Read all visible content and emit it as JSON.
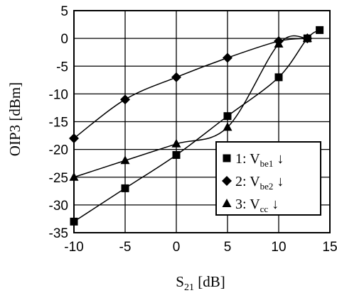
{
  "chart_data": {
    "type": "line",
    "title": "",
    "xlabel": {
      "main": "S",
      "sub": "21",
      "unit": " [dB]"
    },
    "ylabel": "OIP3 [dBm]",
    "xlim": [
      -10,
      15
    ],
    "ylim": [
      -35,
      5
    ],
    "xticks": [
      -10,
      -5,
      0,
      5,
      10,
      15
    ],
    "yticks": [
      -35,
      -30,
      -25,
      -20,
      -15,
      -10,
      -5,
      0,
      5
    ],
    "grid": true,
    "legend_position": "bottom-right",
    "series": [
      {
        "name": "1: V_be1 ↓",
        "label": {
          "prefix": "1: V",
          "sub": "be1",
          "suffix": " ↓"
        },
        "marker": "square",
        "color": "#000000",
        "x": [
          -10,
          -5,
          0,
          5,
          10,
          12.8,
          14
        ],
        "y": [
          -33,
          -27,
          -21,
          -14,
          -7,
          0,
          1.5
        ]
      },
      {
        "name": "2: V_be2 ↓",
        "label": {
          "prefix": "2: V",
          "sub": "be2",
          "suffix": " ↓"
        },
        "marker": "diamond",
        "color": "#000000",
        "x": [
          -10,
          -5,
          0,
          5,
          10,
          12.8
        ],
        "y": [
          -18,
          -11,
          -7,
          -3.5,
          -0.5,
          0
        ]
      },
      {
        "name": "3: V_cc ↓",
        "label": {
          "prefix": "3: V",
          "sub": "cc",
          "suffix": "  ↓"
        },
        "marker": "triangle",
        "color": "#000000",
        "x": [
          -10,
          -5,
          0,
          5,
          10,
          12.8
        ],
        "y": [
          -25,
          -22,
          -19,
          -16,
          -1,
          0
        ]
      }
    ]
  }
}
